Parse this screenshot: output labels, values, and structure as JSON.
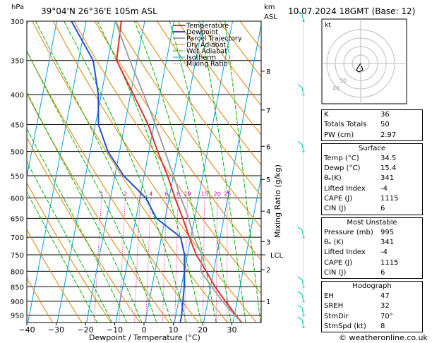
{
  "header": {
    "location": "39°04'N  26°36'E  105m  ASL",
    "datetime": "10.07.2024  18GMT  (Base: 12)",
    "left_unit": "hPa",
    "right_unit_km": "km",
    "right_unit_asl": "ASL"
  },
  "chart_data": {
    "type": "line",
    "xlabel": "Dewpoint / Temperature (°C)",
    "ylabel_right": "Mixing Ratio (g/kg)",
    "xlim": [
      -40,
      35
    ],
    "pressure_range": [
      1000,
      300
    ],
    "x_ticks": [
      -40,
      -30,
      -20,
      -10,
      0,
      10,
      20,
      30
    ],
    "pressure_ticks": [
      300,
      350,
      400,
      450,
      500,
      550,
      600,
      650,
      700,
      750,
      800,
      850,
      900,
      950
    ],
    "altitude_ticks_km": [
      {
        "label": "1",
        "p": 900
      },
      {
        "label": "2",
        "p": 795
      },
      {
        "label": "3",
        "p": 712
      },
      {
        "label": "4",
        "p": 632
      },
      {
        "label": "5",
        "p": 558
      },
      {
        "label": "6",
        "p": 490
      },
      {
        "label": "7",
        "p": 425
      },
      {
        "label": "8",
        "p": 365
      }
    ],
    "lcl": {
      "label": "LCL",
      "p": 750
    },
    "mixing_ratio_labels": [
      "1",
      "2",
      "3",
      "4",
      "6",
      "8",
      "10",
      "15",
      "20",
      "25"
    ],
    "mixing_ratio_values": [
      1,
      2,
      3,
      4,
      6,
      8,
      10,
      15,
      20,
      25
    ],
    "legend": [
      "Temperature",
      "Dewpoint",
      "Parcel Trajectory",
      "Dry Adiabat",
      "Wet Adiabat",
      "Isotherm",
      "Mixing Ratio"
    ],
    "colors": {
      "temperature": "#e03030",
      "dewpoint": "#2050d0",
      "parcel": "#a0a0a0",
      "dry_adiabat": "#e08000",
      "wet_adiabat": "#00b000",
      "isotherm": "#00a0e0",
      "mixing_ratio": "#e000a0",
      "wind": "#00c0b0"
    },
    "series": [
      {
        "name": "Temperature",
        "points": [
          [
            995,
            34.5
          ],
          [
            950,
            30.5
          ],
          [
            900,
            26
          ],
          [
            850,
            21.5
          ],
          [
            800,
            17.5
          ],
          [
            750,
            13
          ],
          [
            700,
            9.5
          ],
          [
            650,
            6
          ],
          [
            600,
            2
          ],
          [
            550,
            -2
          ],
          [
            500,
            -7
          ],
          [
            450,
            -12
          ],
          [
            400,
            -19
          ],
          [
            350,
            -27
          ],
          [
            300,
            -28
          ]
        ]
      },
      {
        "name": "Dewpoint",
        "points": [
          [
            995,
            15.4
          ],
          [
            980,
            12
          ],
          [
            950,
            12
          ],
          [
            900,
            11.5
          ],
          [
            850,
            11
          ],
          [
            800,
            10
          ],
          [
            750,
            9
          ],
          [
            700,
            6.5
          ],
          [
            650,
            -3
          ],
          [
            600,
            -8
          ],
          [
            550,
            -17
          ],
          [
            500,
            -24
          ],
          [
            450,
            -29
          ],
          [
            400,
            -31
          ],
          [
            350,
            -35
          ],
          [
            300,
            -45
          ]
        ]
      },
      {
        "name": "Parcel Trajectory",
        "points": [
          [
            995,
            34.5
          ],
          [
            900,
            25
          ],
          [
            800,
            15.6
          ],
          [
            750,
            15
          ],
          [
            700,
            11
          ],
          [
            650,
            8
          ],
          [
            600,
            4
          ],
          [
            550,
            0
          ],
          [
            500,
            -4.5
          ],
          [
            450,
            -9.5
          ],
          [
            400,
            -15.5
          ],
          [
            350,
            -22.5
          ],
          [
            300,
            -30
          ]
        ]
      }
    ],
    "wind_barbs_p": [
      300,
      400,
      500,
      700,
      850,
      900,
      950,
      995
    ]
  },
  "hodograph": {
    "label": "kt",
    "ring_labels": [
      "40",
      "30"
    ],
    "trace": [
      [
        0,
        0
      ],
      [
        -3,
        -4
      ],
      [
        -6,
        -9
      ],
      [
        -3,
        -12
      ],
      [
        3,
        -9
      ],
      [
        1,
        -3
      ]
    ]
  },
  "indices": {
    "rows": [
      {
        "label": "K",
        "value": "36"
      },
      {
        "label": "Totals Totals",
        "value": "50"
      },
      {
        "label": "PW (cm)",
        "value": "2.97"
      }
    ]
  },
  "surface": {
    "title": "Surface",
    "rows": [
      {
        "label": "Temp (°C)",
        "value": "34.5"
      },
      {
        "label": "Dewp (°C)",
        "value": "15.4"
      },
      {
        "label": "θₑ(K)",
        "value": "341"
      },
      {
        "label": "Lifted Index",
        "value": "-4"
      },
      {
        "label": "CAPE (J)",
        "value": "1115"
      },
      {
        "label": "CIN (J)",
        "value": "6"
      }
    ]
  },
  "most_unstable": {
    "title": "Most Unstable",
    "rows": [
      {
        "label": "Pressure (mb)",
        "value": "995"
      },
      {
        "label": "θₑ (K)",
        "value": "341"
      },
      {
        "label": "Lifted Index",
        "value": "-4"
      },
      {
        "label": "CAPE (J)",
        "value": "1115"
      },
      {
        "label": "CIN (J)",
        "value": "6"
      }
    ]
  },
  "hodograph_table": {
    "title": "Hodograph",
    "rows": [
      {
        "label": "EH",
        "value": "47"
      },
      {
        "label": "SREH",
        "value": "32"
      },
      {
        "label": "StmDir",
        "value": "70°"
      },
      {
        "label": "StmSpd (kt)",
        "value": "8"
      }
    ]
  },
  "footer": {
    "copyright": "© weatheronline.co.uk"
  }
}
